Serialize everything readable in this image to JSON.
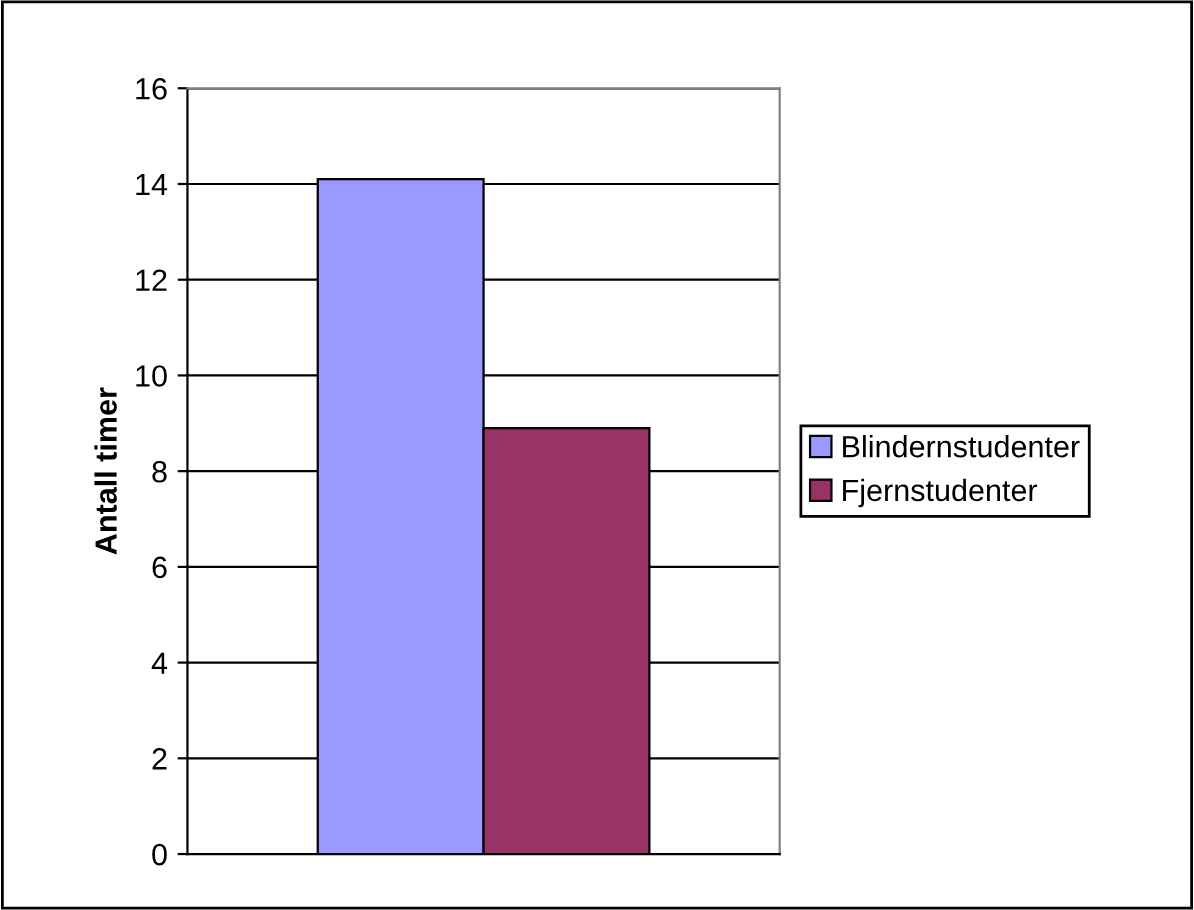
{
  "chart_data": {
    "type": "bar",
    "ylabel": "Antall timer",
    "categories": [
      null
    ],
    "series": [
      {
        "name": "Blindernstudenter",
        "color": "#9999ff",
        "values": [
          14.1
        ]
      },
      {
        "name": "Fjernstudenter",
        "color": "#993366",
        "values": [
          8.9
        ]
      }
    ],
    "ylim": [
      0,
      16
    ],
    "yticks": [
      0,
      2,
      4,
      6,
      8,
      10,
      12,
      14,
      16
    ],
    "grid": "y",
    "legend": "right"
  }
}
